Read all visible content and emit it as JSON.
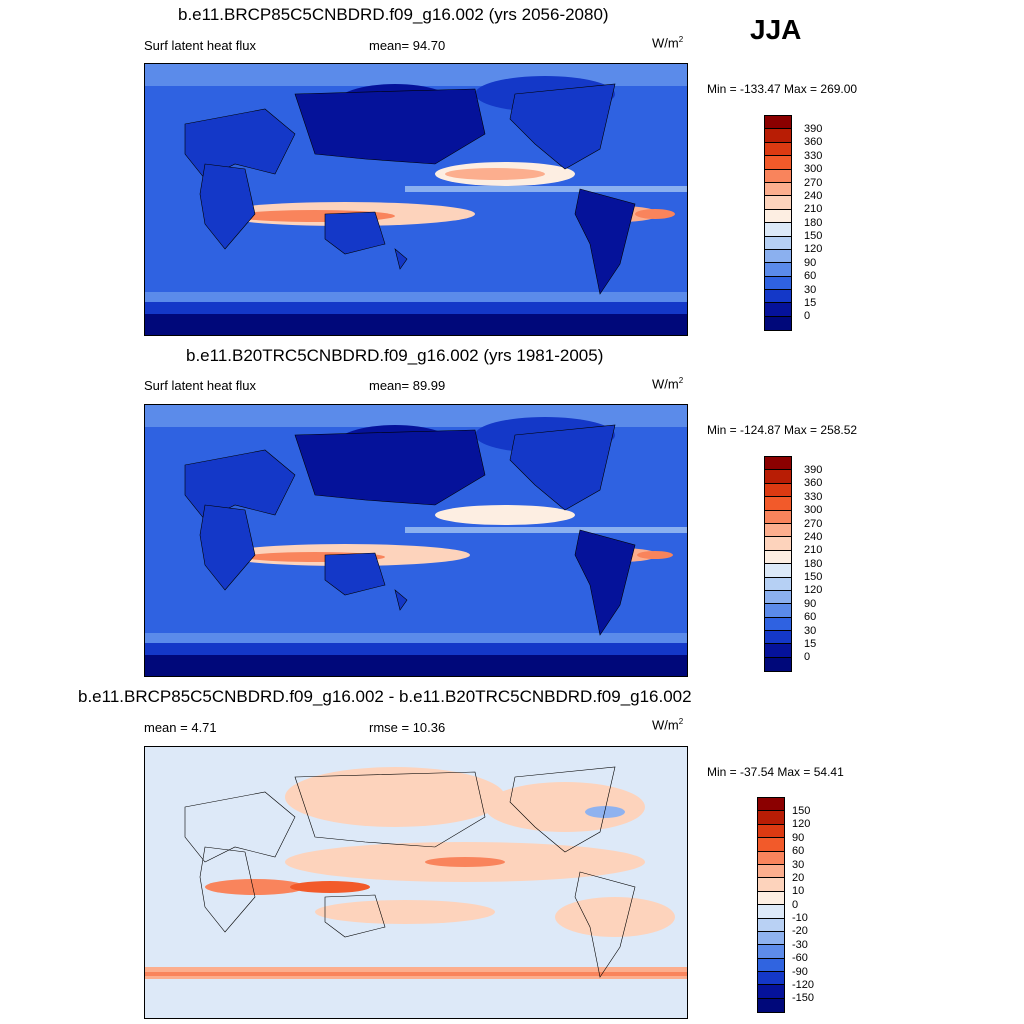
{
  "season": "JJA",
  "panels": [
    {
      "title": "b.e11.BRCP85C5CNBDRD.f09_g16.002 (yrs 2056-2080)",
      "left": "Surf latent heat flux",
      "center": "mean=  94.70",
      "units": "W/m",
      "units_sup": "2",
      "minmax": "Min = -133.47 Max = 269.00",
      "colorbar": {
        "labels": [
          "390",
          "360",
          "330",
          "300",
          "270",
          "240",
          "210",
          "180",
          "150",
          "120",
          "90",
          "60",
          "30",
          "15",
          "0"
        ],
        "colors": [
          "#8b0000",
          "#b81d05",
          "#dc3a12",
          "#f25a2a",
          "#f9845c",
          "#fcae8e",
          "#fdd3bc",
          "#fdeee2",
          "#dce9f8",
          "#b6d0f4",
          "#8bb0ef",
          "#5b8bea",
          "#2f62e1",
          "#1438c8",
          "#05129a",
          "#00087a"
        ]
      }
    },
    {
      "title": "b.e11.B20TRC5CNBDRD.f09_g16.002 (yrs 1981-2005)",
      "left": "Surf latent heat flux",
      "center": "mean=  89.99",
      "units": "W/m",
      "units_sup": "2",
      "minmax": "Min = -124.87 Max = 258.52",
      "colorbar": {
        "labels": [
          "390",
          "360",
          "330",
          "300",
          "270",
          "240",
          "210",
          "180",
          "150",
          "120",
          "90",
          "60",
          "30",
          "15",
          "0"
        ],
        "colors": [
          "#8b0000",
          "#b81d05",
          "#dc3a12",
          "#f25a2a",
          "#f9845c",
          "#fcae8e",
          "#fdd3bc",
          "#fdeee2",
          "#dce9f8",
          "#b6d0f4",
          "#8bb0ef",
          "#5b8bea",
          "#2f62e1",
          "#1438c8",
          "#05129a",
          "#00087a"
        ]
      }
    },
    {
      "title": "b.e11.BRCP85C5CNBDRD.f09_g16.002 - b.e11.B20TRC5CNBDRD.f09_g16.002",
      "left": "mean =   4.71",
      "center": "rmse =  10.36",
      "units": "W/m",
      "units_sup": "2",
      "minmax": "Min = -37.54 Max =  54.41",
      "colorbar": {
        "labels": [
          "150",
          "120",
          "90",
          "60",
          "30",
          "20",
          "10",
          "0",
          "-10",
          "-20",
          "-30",
          "-60",
          "-90",
          "-120",
          "-150"
        ],
        "colors": [
          "#8b0000",
          "#b81d05",
          "#dc3a12",
          "#f25a2a",
          "#f9845c",
          "#fcae8e",
          "#fdd3bc",
          "#fdeee2",
          "#dde9f8",
          "#b9d1f4",
          "#8fb2ef",
          "#5e8cea",
          "#3064e0",
          "#1438c8",
          "#05129a",
          "#00087a"
        ]
      }
    }
  ]
}
